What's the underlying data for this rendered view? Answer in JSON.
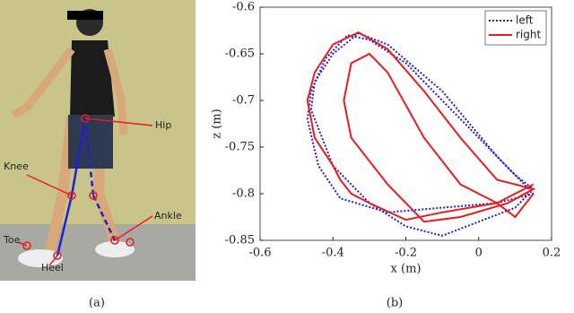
{
  "panel_a": {
    "caption": "(a)",
    "labels": {
      "hip": "Hip",
      "knee": "Knee",
      "ankle": "Ankle",
      "toe": "Toe",
      "heel": "Heel"
    }
  },
  "panel_b_caption": "(b)",
  "chart_data": {
    "type": "line",
    "xlabel": "x (m)",
    "ylabel": "z (m)",
    "xlim": [
      -0.6,
      0.2
    ],
    "ylim": [
      -0.85,
      -0.6
    ],
    "xticks": [
      -0.6,
      -0.4,
      -0.2,
      0,
      0.2
    ],
    "yticks": [
      -0.85,
      -0.8,
      -0.75,
      -0.7,
      -0.65,
      -0.6
    ],
    "legend": "upper right",
    "series": [
      {
        "name": "left",
        "color": "#1f1fd6",
        "linestyle": "dotted",
        "x": [
          0.15,
          0.05,
          -0.1,
          -0.25,
          -0.38,
          -0.44,
          -0.47,
          -0.46,
          -0.42,
          -0.36,
          -0.3,
          -0.2,
          -0.1,
          0.0,
          0.1,
          0.15,
          0.1,
          0.0,
          -0.1,
          -0.2,
          -0.3,
          -0.4,
          -0.46,
          -0.45,
          -0.4,
          -0.33,
          -0.25,
          -0.1,
          0.05,
          0.15
        ],
        "values": [
          -0.8,
          -0.81,
          -0.815,
          -0.82,
          -0.805,
          -0.77,
          -0.72,
          -0.69,
          -0.655,
          -0.63,
          -0.635,
          -0.66,
          -0.7,
          -0.74,
          -0.78,
          -0.795,
          -0.815,
          -0.83,
          -0.845,
          -0.835,
          -0.81,
          -0.77,
          -0.71,
          -0.68,
          -0.65,
          -0.628,
          -0.64,
          -0.69,
          -0.76,
          -0.8
        ]
      },
      {
        "name": "right",
        "color": "#e81c1c",
        "linestyle": "solid",
        "x": [
          0.15,
          0.05,
          -0.1,
          -0.2,
          -0.3,
          -0.35,
          -0.38,
          -0.4,
          -0.45,
          -0.47,
          -0.45,
          -0.4,
          -0.33,
          -0.25,
          -0.15,
          -0.05,
          0.05,
          0.15,
          0.08,
          -0.05,
          -0.15,
          -0.25,
          -0.35,
          -0.37,
          -0.35,
          -0.3,
          -0.25,
          -0.15,
          -0.05,
          0.05,
          0.1,
          0.15
        ],
        "values": [
          -0.79,
          -0.81,
          -0.82,
          -0.828,
          -0.81,
          -0.8,
          -0.785,
          -0.77,
          -0.74,
          -0.7,
          -0.67,
          -0.64,
          -0.627,
          -0.645,
          -0.69,
          -0.74,
          -0.785,
          -0.795,
          -0.81,
          -0.825,
          -0.83,
          -0.79,
          -0.74,
          -0.7,
          -0.66,
          -0.65,
          -0.67,
          -0.74,
          -0.79,
          -0.81,
          -0.825,
          -0.8
        ]
      }
    ]
  }
}
